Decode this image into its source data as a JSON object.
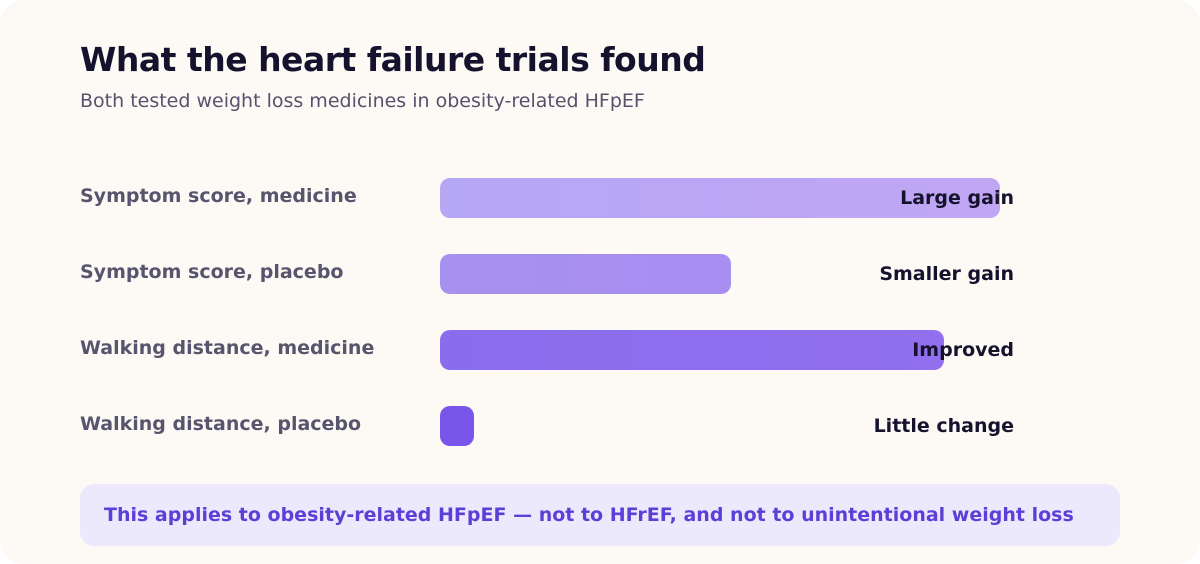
{
  "chart_data": {
    "type": "bar",
    "title": "What the heart failure trials found",
    "subtitle": "Both tested weight loss medicines in obesity-related HFpEF",
    "xlim": [
      0,
      100
    ],
    "categories": [
      "Symptom score, medicine",
      "Symptom score, placebo",
      "Walking distance, medicine",
      "Walking distance, placebo"
    ],
    "values": [
      100,
      52,
      90,
      6
    ],
    "value_labels": [
      "Large gain",
      "Smaller gain",
      "Improved",
      "Little change"
    ],
    "colors": [
      [
        "#b4a7f4",
        "#c1a6f4"
      ],
      [
        "#a690f0",
        "#a98ef1"
      ],
      [
        "#8a6ded",
        "#916fee"
      ],
      [
        "#7a55e9",
        "#7a55e9"
      ]
    ],
    "grid": false,
    "legend": "none"
  },
  "footnote": {
    "text": "This applies to obesity-related HFpEF — not to HFrEF, and not to unintentional weight loss"
  }
}
